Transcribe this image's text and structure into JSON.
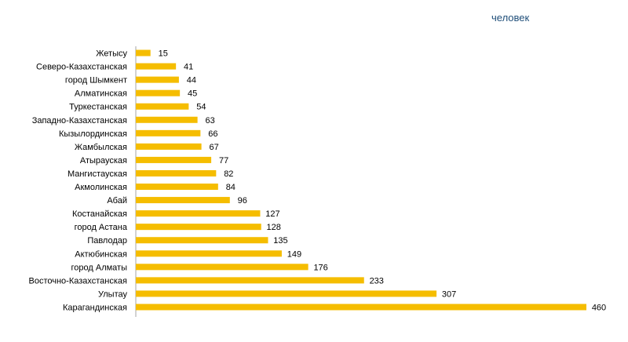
{
  "unit_label": "человек",
  "chart_data": {
    "type": "bar",
    "orientation": "horizontal",
    "title": "",
    "xlabel": "",
    "ylabel": "",
    "xlim": [
      0,
      460
    ],
    "grid": false,
    "legend": "none",
    "bar_color": "#f5bd00",
    "categories": [
      "Жетысу",
      "Северо-Казахстанская",
      "город Шымкент",
      "Алматинская",
      "Туркестанская",
      "Западно-Казахстанская",
      "Кызылординская",
      "Жамбылская",
      "Атырауская",
      "Мангистауская",
      "Акмолинская",
      "Абай",
      "Костанайская",
      "город Астана",
      "Павлодар",
      "Актюбинская",
      "город Алматы",
      "Восточно-Казахстанская",
      "Улытау",
      "Карагандинская"
    ],
    "values": [
      15,
      41,
      44,
      45,
      54,
      63,
      66,
      67,
      77,
      82,
      84,
      96,
      127,
      128,
      135,
      149,
      176,
      233,
      307,
      460
    ]
  }
}
